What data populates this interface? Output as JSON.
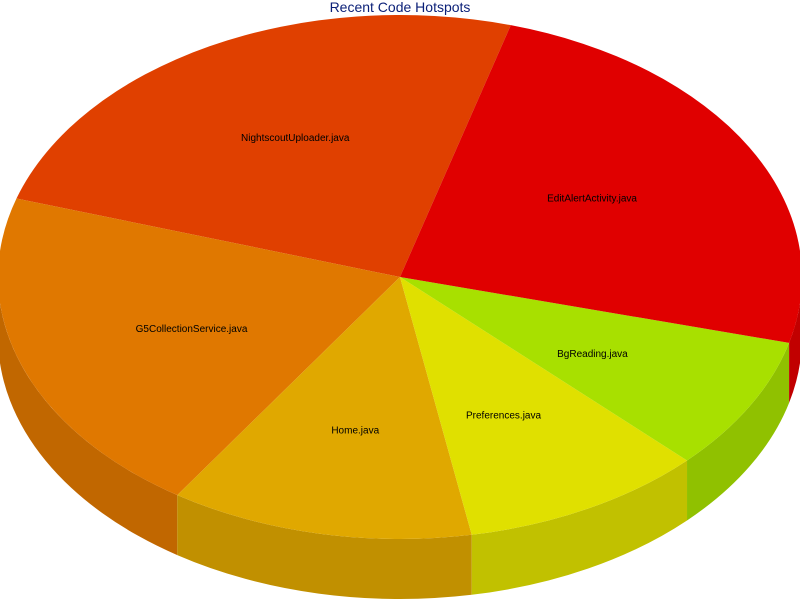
{
  "chart_data": {
    "type": "pie",
    "title": "Recent Code Hotspots",
    "slices": [
      {
        "label": "NightscoutUploader.java",
        "value": 24.6,
        "color": "#e04000"
      },
      {
        "label": "G5CollectionService.java",
        "value": 20.5,
        "color": "#e07800"
      },
      {
        "label": "Home.java",
        "value": 12.2,
        "color": "#e0a800"
      },
      {
        "label": "Preferences.java",
        "value": 9.8,
        "color": "#e0e000"
      },
      {
        "label": "BgReading.java",
        "value": 8.3,
        "color": "#a8e000"
      },
      {
        "label": "EditAlertActivity.java",
        "value": 24.6,
        "color": "#e00000"
      }
    ]
  }
}
